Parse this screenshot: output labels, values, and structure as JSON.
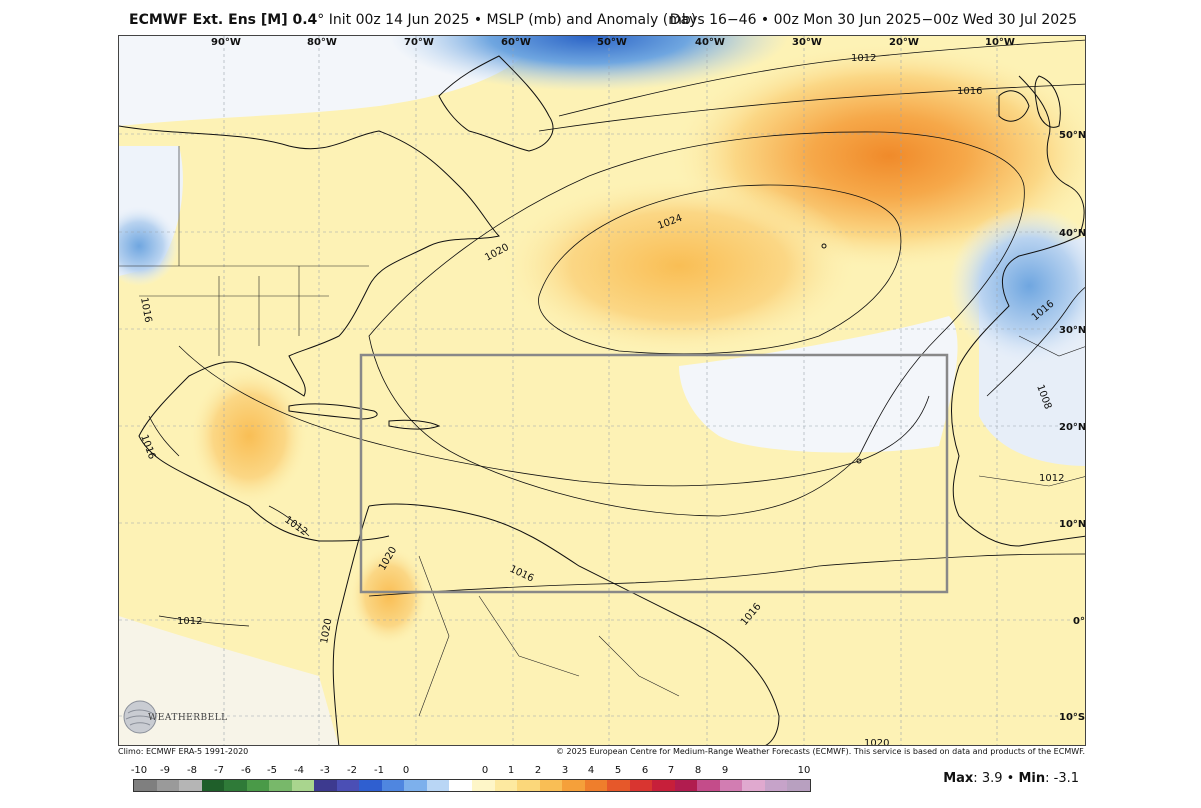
{
  "header": {
    "model": "ECMWF Ext. Ens [M] 0.4",
    "degree": "°",
    "description": "Init 00z 14 Jun 2025 • MSLP (mb) and Anomaly (mb)",
    "valid_range": "Days 16−46 • 00z Mon 30 Jun 2025−00z Wed 30 Jul 2025"
  },
  "map": {
    "longitude_labels": [
      "90°W",
      "80°W",
      "70°W",
      "60°W",
      "50°W",
      "40°W",
      "30°W",
      "20°W",
      "10°W"
    ],
    "latitude_labels": [
      "50°N",
      "40°N",
      "30°N",
      "20°N",
      "10°N",
      "0°",
      "10°S"
    ],
    "contour_labels": [
      "1012",
      "1016",
      "1020",
      "1024",
      "1016",
      "1012",
      "1016",
      "1008",
      "1012",
      "1016",
      "1012",
      "1012",
      "1016",
      "1020",
      "1016",
      "1020",
      "1020"
    ],
    "colors": {
      "land_boundary": "#111111",
      "anomaly_positive_light": "#fdf2b5",
      "anomaly_positive_mid": "#fbd785",
      "anomaly_positive_strong": "#f6a849",
      "anomaly_positive_max": "#f08a2a",
      "anomaly_neutral": "#f3f6fa",
      "anomaly_negative_light": "#b9d3f0",
      "anomaly_negative_mid": "#6fa6e0",
      "anomaly_negative_strong": "#2b63c6",
      "box_outline": "#888888"
    }
  },
  "logo": {
    "text": "WEATHERBELL",
    "icon": "weatherbell-globe-logo"
  },
  "footer": {
    "climo": "Climo: ECMWF ERA-5 1991-2020",
    "copyright": "© 2025 European Centre for Medium-Range Weather Forecasts (ECMWF). This service is based on data and products of the ECMWF."
  },
  "colorbar": {
    "labels": [
      "-10",
      "-9",
      "-8",
      "-7",
      "-6",
      "-5",
      "-4",
      "-3",
      "-2",
      "-1",
      "0",
      "0",
      "1",
      "2",
      "3",
      "4",
      "5",
      "6",
      "7",
      "8",
      "9",
      "10"
    ],
    "colors": [
      "#7f7f7f",
      "#9a9a9a",
      "#b5b5b5",
      "#1f5f2a",
      "#2f7a38",
      "#4a9a48",
      "#78b86a",
      "#a9d58e",
      "#3d3a8f",
      "#4b4fb5",
      "#2f5fd0",
      "#4f86e0",
      "#7db0ec",
      "#b9d6f5",
      "#ffffff",
      "#fef6c8",
      "#fde9a0",
      "#fbd77a",
      "#f9be55",
      "#f5a03a",
      "#ef7e2c",
      "#e6582a",
      "#d93530",
      "#c71f3a",
      "#b11c4f",
      "#c44c8a",
      "#d27db2",
      "#e0a9cf",
      "#c6a3c9",
      "#b8a0c0"
    ]
  },
  "stats": {
    "max_label": "Max",
    "max_value": "3.9",
    "separator": "•",
    "min_label": "Min",
    "min_value": "-3.1"
  }
}
